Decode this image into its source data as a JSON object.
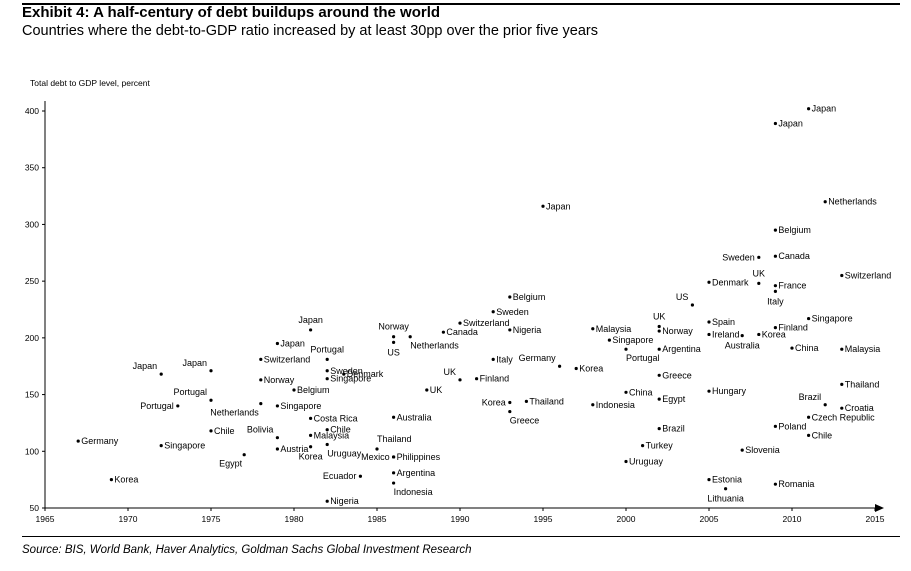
{
  "header": {
    "title": "Exhibit 4: A half-century of debt buildups around the world",
    "subtitle": "Countries where the debt-to-GDP ratio increased by at least 30pp over the prior five years"
  },
  "footer": {
    "source": "Source: BIS, World Bank, Haver Analytics, Goldman Sachs Global Investment Research"
  },
  "colors": {
    "text": "#000000",
    "axis": "#000000",
    "marker": "#000000"
  },
  "chart_data": {
    "type": "scatter",
    "title": "Exhibit 4: A half-century of debt buildups around the world",
    "subtitle": "Countries where the debt-to-GDP ratio increased by at least 30pp over the prior five years",
    "xlabel": "",
    "ylabel": "Total debt to GDP level, percent",
    "xlim": [
      1965,
      2015
    ],
    "ylim": [
      50,
      400
    ],
    "xticks": [
      "1965",
      "1970",
      "1975",
      "1980",
      "1985",
      "1990",
      "1995",
      "2000",
      "2005",
      "2010",
      "2015"
    ],
    "yticks": [
      "50",
      "100",
      "150",
      "200",
      "250",
      "300",
      "350",
      "400"
    ],
    "grid": false,
    "legend": "none",
    "points": [
      {
        "label": "Germany",
        "x": 1967,
        "y": 109,
        "pos": "r"
      },
      {
        "label": "Korea",
        "x": 1969,
        "y": 75,
        "pos": "r"
      },
      {
        "label": "Japan",
        "x": 1972,
        "y": 168,
        "pos": "ul"
      },
      {
        "label": "Singapore",
        "x": 1972,
        "y": 105,
        "pos": "r"
      },
      {
        "label": "Portugal",
        "x": 1973,
        "y": 140,
        "pos": "l"
      },
      {
        "label": "Japan",
        "x": 1975,
        "y": 171,
        "pos": "ul"
      },
      {
        "label": "Portugal",
        "x": 1975,
        "y": 145,
        "pos": "ul"
      },
      {
        "label": "Chile",
        "x": 1975,
        "y": 118,
        "pos": "r"
      },
      {
        "label": "Egypt",
        "x": 1977,
        "y": 97,
        "pos": "dl"
      },
      {
        "label": "Netherlands",
        "x": 1978,
        "y": 142,
        "pos": "dl"
      },
      {
        "label": "Bolivia",
        "x": 1979,
        "y": 112,
        "pos": "ul"
      },
      {
        "label": "Austria",
        "x": 1979,
        "y": 102,
        "pos": "r"
      },
      {
        "label": "Switzerland",
        "x": 1978,
        "y": 181,
        "pos": "r"
      },
      {
        "label": "Norway",
        "x": 1978,
        "y": 163,
        "pos": "r"
      },
      {
        "label": "Japan",
        "x": 1979,
        "y": 195,
        "pos": "r"
      },
      {
        "label": "Singapore",
        "x": 1979,
        "y": 140,
        "pos": "r"
      },
      {
        "label": "Belgium",
        "x": 1980,
        "y": 154,
        "pos": "r"
      },
      {
        "label": "Japan",
        "x": 1981,
        "y": 207,
        "pos": "u"
      },
      {
        "label": "Costa Rica",
        "x": 1981,
        "y": 129,
        "pos": "r"
      },
      {
        "label": "Malaysia",
        "x": 1981,
        "y": 114,
        "pos": "r"
      },
      {
        "label": "Korea",
        "x": 1981,
        "y": 104,
        "pos": "d"
      },
      {
        "label": "Portugal",
        "x": 1982,
        "y": 181,
        "pos": "u"
      },
      {
        "label": "Sweden",
        "x": 1982,
        "y": 171,
        "pos": "r"
      },
      {
        "label": "Denmark",
        "x": 1983,
        "y": 168,
        "pos": "r"
      },
      {
        "label": "Singapore",
        "x": 1982,
        "y": 164,
        "pos": "r"
      },
      {
        "label": "Chile",
        "x": 1982,
        "y": 119,
        "pos": "r"
      },
      {
        "label": "Uruguay",
        "x": 1982,
        "y": 106,
        "pos": "dr"
      },
      {
        "label": "Ecuador",
        "x": 1984,
        "y": 78,
        "pos": "l"
      },
      {
        "label": "Nigeria",
        "x": 1982,
        "y": 56,
        "pos": "r"
      },
      {
        "label": "Thailand",
        "x": 1985,
        "y": 102,
        "pos": "ur"
      },
      {
        "label": "Mexico",
        "x": 1986,
        "y": 95,
        "pos": "l"
      },
      {
        "label": "Philippines",
        "x": 1986,
        "y": 95,
        "pos": "r"
      },
      {
        "label": "Argentina",
        "x": 1986,
        "y": 81,
        "pos": "r"
      },
      {
        "label": "Indonesia",
        "x": 1986,
        "y": 72,
        "pos": "dr"
      },
      {
        "label": "Australia",
        "x": 1986,
        "y": 130,
        "pos": "r"
      },
      {
        "label": "Norway",
        "x": 1986,
        "y": 201,
        "pos": "u"
      },
      {
        "label": "US",
        "x": 1986,
        "y": 196,
        "pos": "d"
      },
      {
        "label": "Netherlands",
        "x": 1987,
        "y": 201,
        "pos": "dr"
      },
      {
        "label": "Canada",
        "x": 1989,
        "y": 205,
        "pos": "r"
      },
      {
        "label": "UK",
        "x": 1988,
        "y": 154,
        "pos": "r"
      },
      {
        "label": "UK",
        "x": 1990,
        "y": 163,
        "pos": "ul"
      },
      {
        "label": "Switzerland",
        "x": 1990,
        "y": 213,
        "pos": "r"
      },
      {
        "label": "Finland",
        "x": 1991,
        "y": 164,
        "pos": "r"
      },
      {
        "label": "Italy",
        "x": 1992,
        "y": 181,
        "pos": "r"
      },
      {
        "label": "Sweden",
        "x": 1992,
        "y": 223,
        "pos": "r"
      },
      {
        "label": "Belgium",
        "x": 1993,
        "y": 236,
        "pos": "r"
      },
      {
        "label": "Nigeria",
        "x": 1993,
        "y": 207,
        "pos": "r"
      },
      {
        "label": "Korea",
        "x": 1993,
        "y": 143,
        "pos": "l"
      },
      {
        "label": "Greece",
        "x": 1993,
        "y": 135,
        "pos": "dr"
      },
      {
        "label": "Thailand",
        "x": 1994,
        "y": 144,
        "pos": "r"
      },
      {
        "label": "Japan",
        "x": 1995,
        "y": 316,
        "pos": "r"
      },
      {
        "label": "Germany",
        "x": 1996,
        "y": 175,
        "pos": "ul"
      },
      {
        "label": "Korea",
        "x": 1997,
        "y": 173,
        "pos": "r"
      },
      {
        "label": "Malaysia",
        "x": 1998,
        "y": 208,
        "pos": "r"
      },
      {
        "label": "Indonesia",
        "x": 1998,
        "y": 141,
        "pos": "r"
      },
      {
        "label": "Singapore",
        "x": 1999,
        "y": 198,
        "pos": "r"
      },
      {
        "label": "Portugal",
        "x": 2000,
        "y": 190,
        "pos": "dr"
      },
      {
        "label": "China",
        "x": 2000,
        "y": 152,
        "pos": "r"
      },
      {
        "label": "Turkey",
        "x": 2001,
        "y": 105,
        "pos": "r"
      },
      {
        "label": "Uruguay",
        "x": 2000,
        "y": 91,
        "pos": "r"
      },
      {
        "label": "UK",
        "x": 2002,
        "y": 210,
        "pos": "u"
      },
      {
        "label": "Norway",
        "x": 2002,
        "y": 206,
        "pos": "r"
      },
      {
        "label": "Argentina",
        "x": 2002,
        "y": 190,
        "pos": "r"
      },
      {
        "label": "Greece",
        "x": 2002,
        "y": 167,
        "pos": "r"
      },
      {
        "label": "Egypt",
        "x": 2002,
        "y": 146,
        "pos": "r"
      },
      {
        "label": "Brazil",
        "x": 2002,
        "y": 120,
        "pos": "r"
      },
      {
        "label": "US",
        "x": 2004,
        "y": 229,
        "pos": "ul"
      },
      {
        "label": "Denmark",
        "x": 2005,
        "y": 249,
        "pos": "r"
      },
      {
        "label": "Spain",
        "x": 2005,
        "y": 214,
        "pos": "r"
      },
      {
        "label": "Ireland",
        "x": 2005,
        "y": 203,
        "pos": "r"
      },
      {
        "label": "Hungary",
        "x": 2005,
        "y": 153,
        "pos": "r"
      },
      {
        "label": "Estonia",
        "x": 2005,
        "y": 75,
        "pos": "r"
      },
      {
        "label": "Lithuania",
        "x": 2006,
        "y": 67,
        "pos": "d"
      },
      {
        "label": "Sweden",
        "x": 2008,
        "y": 271,
        "pos": "l"
      },
      {
        "label": "UK",
        "x": 2008,
        "y": 248,
        "pos": "u"
      },
      {
        "label": "Australia",
        "x": 2007,
        "y": 202,
        "pos": "d"
      },
      {
        "label": "Slovenia",
        "x": 2007,
        "y": 101,
        "pos": "r"
      },
      {
        "label": "Korea",
        "x": 2008,
        "y": 203,
        "pos": "r"
      },
      {
        "label": "Japan",
        "x": 2009,
        "y": 389,
        "pos": "r"
      },
      {
        "label": "Belgium",
        "x": 2009,
        "y": 295,
        "pos": "r"
      },
      {
        "label": "Canada",
        "x": 2009,
        "y": 272,
        "pos": "r"
      },
      {
        "label": "France",
        "x": 2009,
        "y": 246,
        "pos": "r"
      },
      {
        "label": "Italy",
        "x": 2009,
        "y": 241,
        "pos": "d"
      },
      {
        "label": "Finland",
        "x": 2009,
        "y": 209,
        "pos": "r"
      },
      {
        "label": "Poland",
        "x": 2009,
        "y": 122,
        "pos": "r"
      },
      {
        "label": "Romania",
        "x": 2009,
        "y": 71,
        "pos": "r"
      },
      {
        "label": "Japan",
        "x": 2011,
        "y": 402,
        "pos": "r"
      },
      {
        "label": "Singapore",
        "x": 2011,
        "y": 217,
        "pos": "r"
      },
      {
        "label": "China",
        "x": 2010,
        "y": 191,
        "pos": "r"
      },
      {
        "label": "Chile",
        "x": 2011,
        "y": 114,
        "pos": "r"
      },
      {
        "label": "Czech Republic",
        "x": 2011,
        "y": 130,
        "pos": "r"
      },
      {
        "label": "Netherlands",
        "x": 2012,
        "y": 320,
        "pos": "r"
      },
      {
        "label": "Brazil",
        "x": 2012,
        "y": 141,
        "pos": "ul"
      },
      {
        "label": "Switzerland",
        "x": 2013,
        "y": 255,
        "pos": "r"
      },
      {
        "label": "Malaysia",
        "x": 2013,
        "y": 190,
        "pos": "r"
      },
      {
        "label": "Thailand",
        "x": 2013,
        "y": 159,
        "pos": "r"
      },
      {
        "label": "Croatia",
        "x": 2013,
        "y": 138,
        "pos": "r"
      }
    ]
  }
}
